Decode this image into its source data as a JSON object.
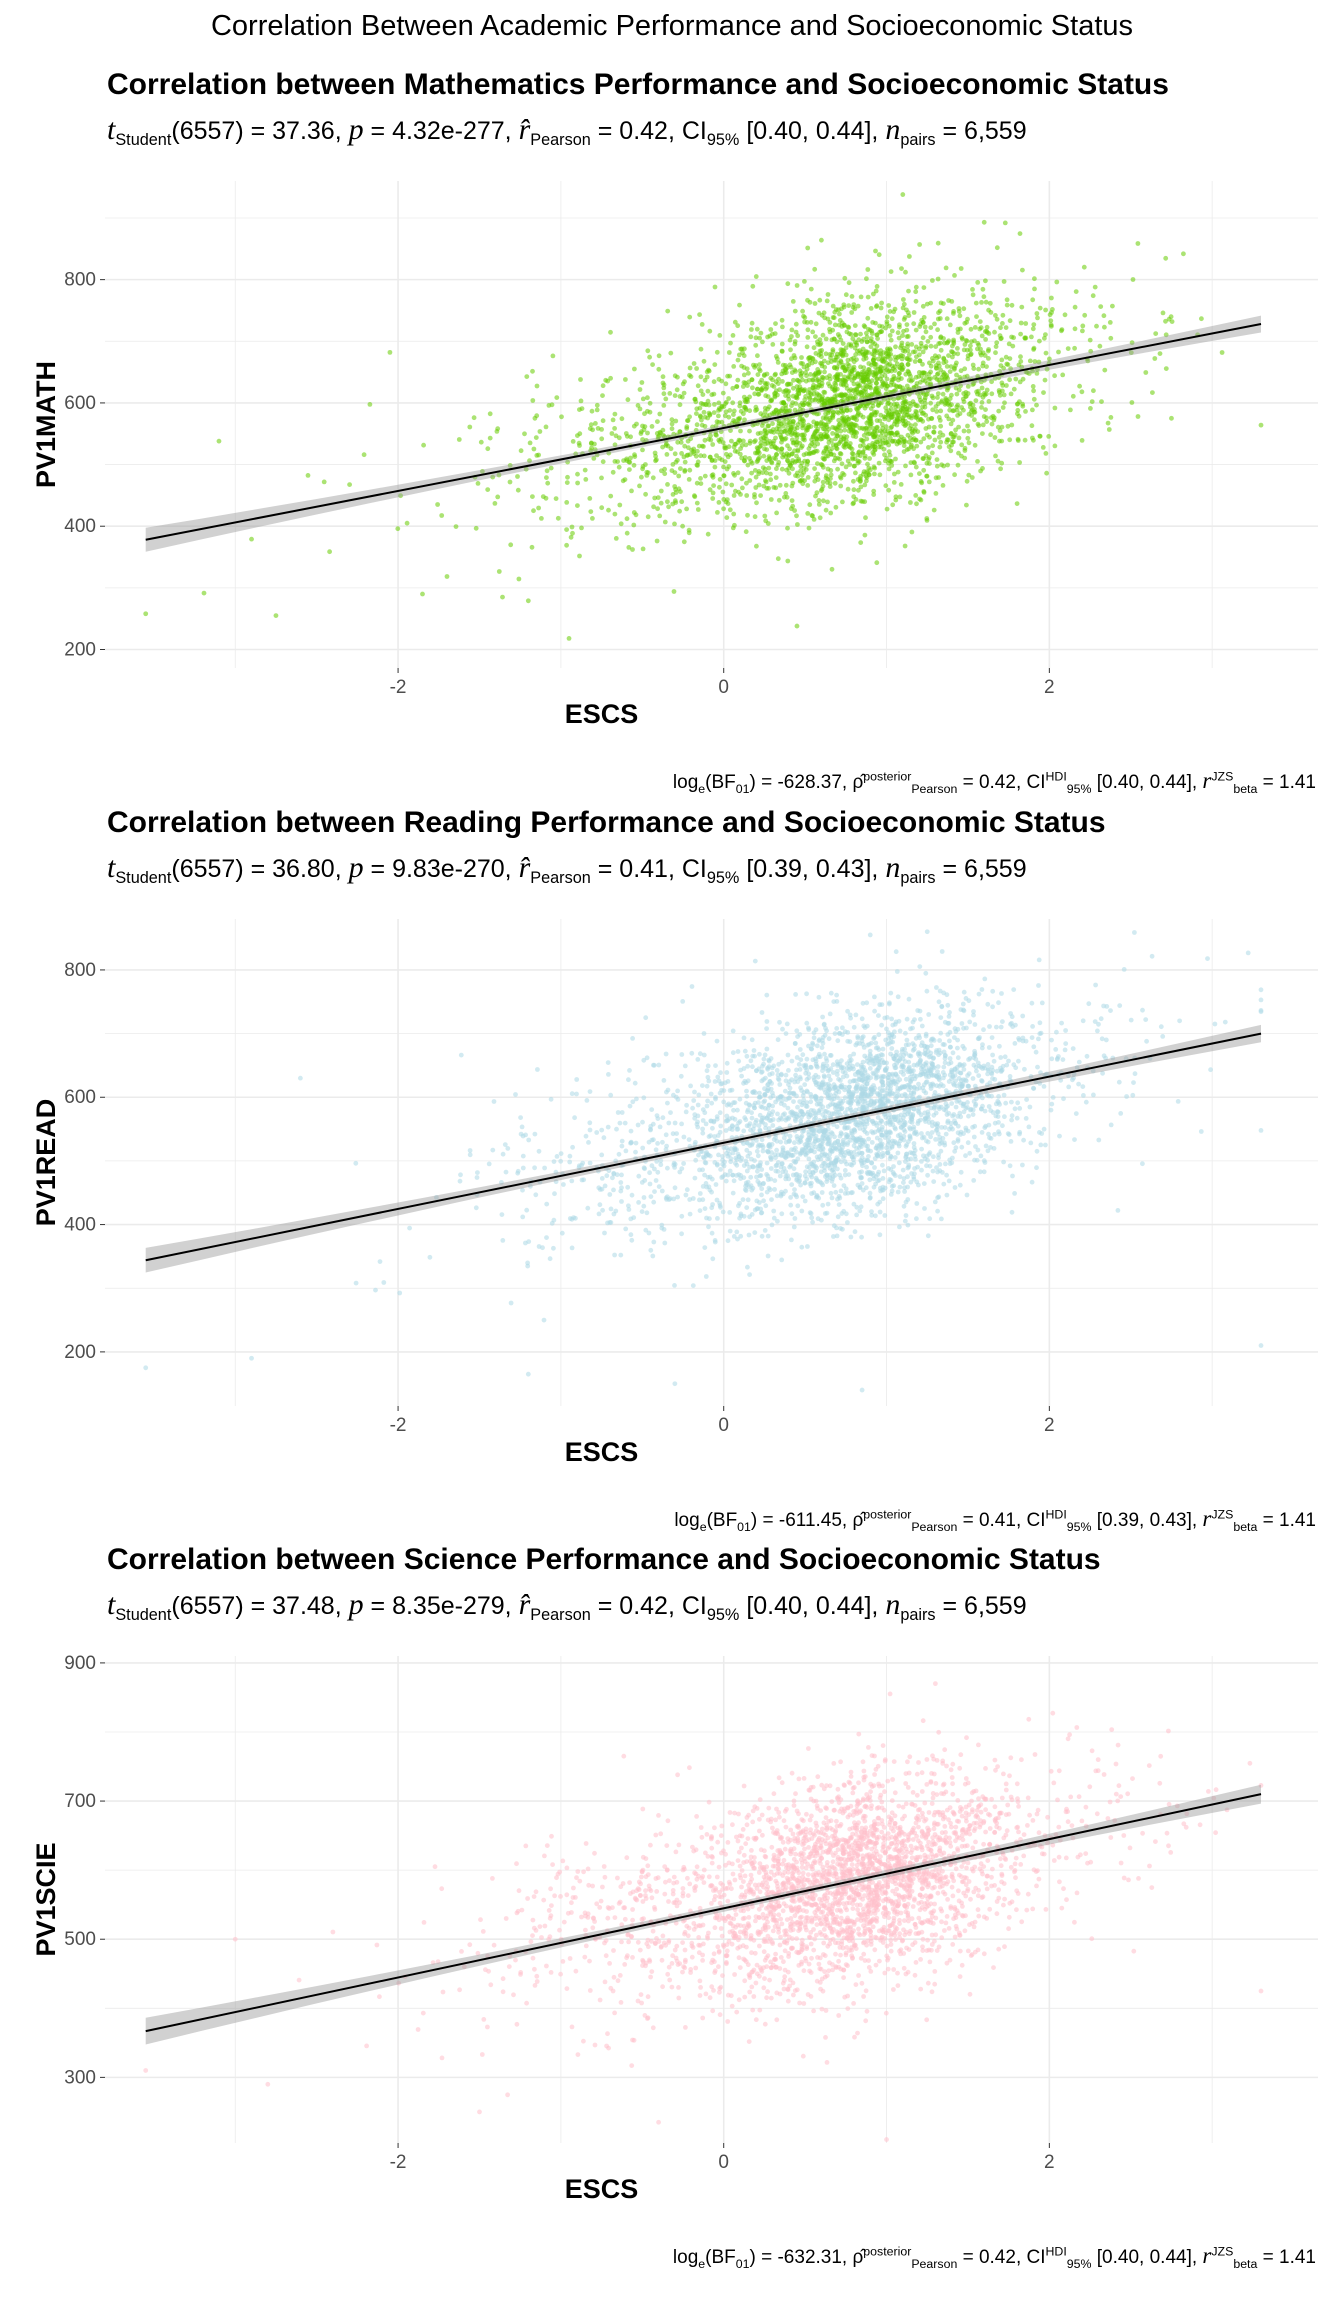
{
  "page": {
    "title": "Correlation Between Academic Performance and Socioeconomic Status"
  },
  "panels": [
    {
      "title": "Correlation between Mathematics Performance and Socioeconomic Status",
      "subtitle": {
        "t_label": "t",
        "t_sub": "Student",
        "df": "(6557) = 37.36, ",
        "p_label": "p",
        "p_value": " = 4.32e-277, ",
        "r_label": "r̂",
        "r_sub": "Pearson",
        "r_value": " = 0.42, CI",
        "ci_sub": "95%",
        "ci_value": " [0.40, 0.44], ",
        "n_label": "n",
        "n_sub": "pairs",
        "n_value": " = 6,559"
      },
      "caption": {
        "a": "log",
        "a_sub": "e",
        "b": "(BF",
        "b_sub": "01",
        "c": ") = -628.37, ",
        "rho": "ρ̂",
        "rho_sup": "posterior",
        "rho_sub": "Pearson",
        "d": " = 0.42, CI",
        "hdi_sup": "HDI",
        "hdi_sub": "95%",
        "e": " [0.40, 0.44], ",
        "r": "r",
        "r_sup": "JZS",
        "r_sub": "beta",
        "f": " = 1.41"
      }
    },
    {
      "title": "Correlation between Reading Performance and Socioeconomic Status",
      "subtitle": {
        "t_label": "t",
        "t_sub": "Student",
        "df": "(6557) = 36.80, ",
        "p_label": "p",
        "p_value": " = 9.83e-270, ",
        "r_label": "r̂",
        "r_sub": "Pearson",
        "r_value": " = 0.41, CI",
        "ci_sub": "95%",
        "ci_value": " [0.39, 0.43], ",
        "n_label": "n",
        "n_sub": "pairs",
        "n_value": " = 6,559"
      },
      "caption": {
        "a": "log",
        "a_sub": "e",
        "b": "(BF",
        "b_sub": "01",
        "c": ") = -611.45, ",
        "rho": "ρ̂",
        "rho_sup": "posterior",
        "rho_sub": "Pearson",
        "d": " = 0.41, CI",
        "hdi_sup": "HDI",
        "hdi_sub": "95%",
        "e": " [0.39, 0.43], ",
        "r": "r",
        "r_sup": "JZS",
        "r_sub": "beta",
        "f": " = 1.41"
      }
    },
    {
      "title": "Correlation between Science Performance and Socioeconomic Status",
      "subtitle": {
        "t_label": "t",
        "t_sub": "Student",
        "df": "(6557) = 37.48, ",
        "p_label": "p",
        "p_value": " = 8.35e-279, ",
        "r_label": "r̂",
        "r_sub": "Pearson",
        "r_value": " = 0.42, CI",
        "ci_sub": "95%",
        "ci_value": " [0.40, 0.44], ",
        "n_label": "n",
        "n_sub": "pairs",
        "n_value": " = 6,559"
      },
      "caption": {
        "a": "log",
        "a_sub": "e",
        "b": "(BF",
        "b_sub": "01",
        "c": ") = -632.31, ",
        "rho": "ρ̂",
        "rho_sup": "posterior",
        "rho_sub": "Pearson",
        "d": " = 0.42, CI",
        "hdi_sup": "HDI",
        "hdi_sub": "95%",
        "e": " [0.40, 0.44], ",
        "r": "r",
        "r_sup": "JZS",
        "r_sub": "beta",
        "f": " = 1.41"
      }
    }
  ],
  "chart_data": [
    {
      "type": "scatter",
      "title": "Correlation between Mathematics Performance and Socioeconomic Status",
      "xlabel": "ESCS",
      "ylabel": "PV1MATH",
      "xlim": [
        -3.8,
        3.65
      ],
      "ylim": [
        170,
        960
      ],
      "xticks": [
        -2,
        0,
        2
      ],
      "yticks": [
        200,
        400,
        600,
        800
      ],
      "grid": true,
      "point_color": "#66cc00",
      "line_color": "#000000",
      "n": 6559,
      "x_center": 0.5,
      "x_sd": 0.8,
      "regression": {
        "x": [
          -3.55,
          3.3
        ],
        "y": [
          378,
          728
        ]
      },
      "points": [
        {
          "x": -3.55,
          "y": 258
        },
        {
          "x": -3.1,
          "y": 538
        },
        {
          "x": -2.9,
          "y": 379
        },
        {
          "x": -2.75,
          "y": 255
        },
        {
          "x": -2.05,
          "y": 682
        },
        {
          "x": -1.85,
          "y": 290
        },
        {
          "x": -1.2,
          "y": 279
        },
        {
          "x": -0.95,
          "y": 218
        },
        {
          "x": 0.2,
          "y": 805
        },
        {
          "x": 0.45,
          "y": 238
        },
        {
          "x": 0.6,
          "y": 864
        },
        {
          "x": 1.1,
          "y": 938
        },
        {
          "x": 1.6,
          "y": 893
        },
        {
          "x": 2.2,
          "y": 618
        },
        {
          "x": 2.75,
          "y": 575
        },
        {
          "x": 3.3,
          "y": 564
        }
      ]
    },
    {
      "type": "scatter",
      "title": "Correlation between Reading Performance and Socioeconomic Status",
      "xlabel": "ESCS",
      "ylabel": "PV1READ",
      "xlim": [
        -3.8,
        3.65
      ],
      "ylim": [
        115,
        880
      ],
      "xticks": [
        -2,
        0,
        2
      ],
      "yticks": [
        200,
        400,
        600,
        800
      ],
      "grid": true,
      "point_color": "#add8e6",
      "line_color": "#000000",
      "n": 6559,
      "x_center": 0.5,
      "x_sd": 0.8,
      "regression": {
        "x": [
          -3.55,
          3.3
        ],
        "y": [
          344,
          700
        ]
      },
      "points": [
        {
          "x": -3.55,
          "y": 175
        },
        {
          "x": -2.9,
          "y": 190
        },
        {
          "x": -2.6,
          "y": 630
        },
        {
          "x": -1.2,
          "y": 165
        },
        {
          "x": -0.3,
          "y": 150
        },
        {
          "x": 0.9,
          "y": 855
        },
        {
          "x": 0.85,
          "y": 140
        },
        {
          "x": 1.25,
          "y": 860
        },
        {
          "x": 2.35,
          "y": 690
        },
        {
          "x": 2.8,
          "y": 720
        },
        {
          "x": 3.3,
          "y": 210
        }
      ]
    },
    {
      "type": "scatter",
      "title": "Correlation between Science Performance and Socioeconomic Status",
      "xlabel": "ESCS",
      "ylabel": "PV1SCIE",
      "xlim": [
        -3.8,
        3.65
      ],
      "ylim": [
        205,
        910
      ],
      "xticks": [
        -2,
        0,
        2
      ],
      "yticks": [
        300,
        500,
        700,
        900
      ],
      "grid": true,
      "point_color": "#ffc0cb",
      "line_color": "#000000",
      "n": 6559,
      "x_center": 0.5,
      "x_sd": 0.8,
      "regression": {
        "x": [
          -3.55,
          3.3
        ],
        "y": [
          367,
          710
        ]
      },
      "points": [
        {
          "x": -3.55,
          "y": 310
        },
        {
          "x": -3.0,
          "y": 500
        },
        {
          "x": -2.8,
          "y": 290
        },
        {
          "x": -1.5,
          "y": 250
        },
        {
          "x": -0.4,
          "y": 235
        },
        {
          "x": 1.3,
          "y": 870
        },
        {
          "x": 1.0,
          "y": 210
        },
        {
          "x": 2.3,
          "y": 760
        },
        {
          "x": 3.3,
          "y": 425
        }
      ]
    }
  ]
}
